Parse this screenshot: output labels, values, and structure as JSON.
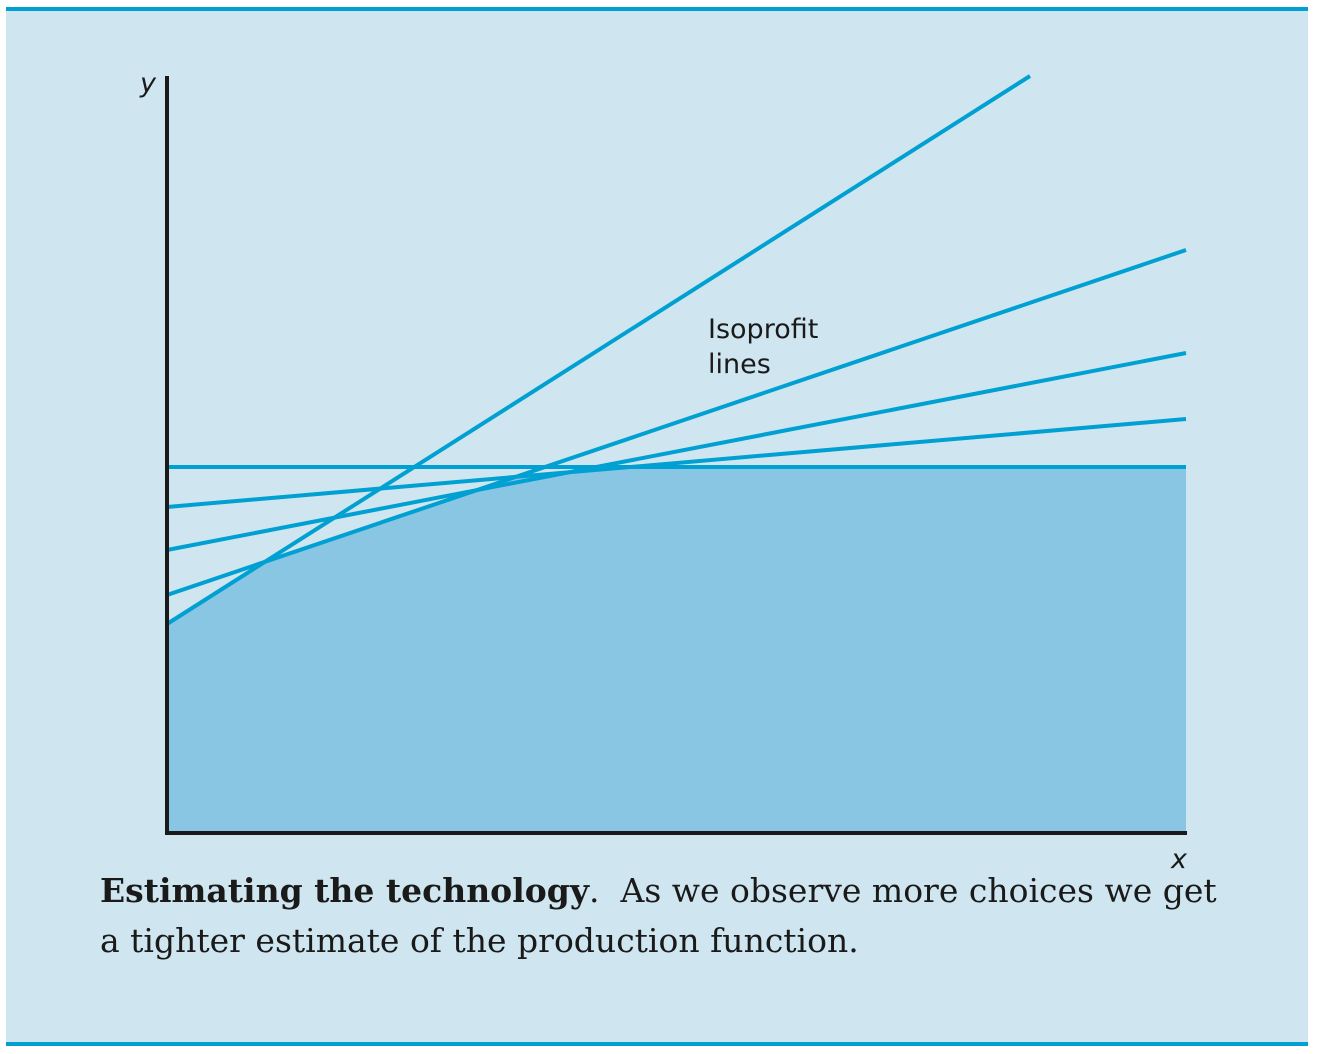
{
  "figure": {
    "x_axis_label": "x",
    "y_axis_label": "y",
    "annotation_line1": "Isoprofit",
    "annotation_line2": "lines",
    "caption_title": "Estimating the technology",
    "caption_title_punct": ".",
    "caption_body": "As we observe more choices we get a tighter estimate of the production function."
  },
  "colors": {
    "panel_background": "#cfe6f0",
    "region_fill": "#88c6e3",
    "isoprofit_line": "#00a0d2",
    "axis": "#1a1a1a"
  }
}
